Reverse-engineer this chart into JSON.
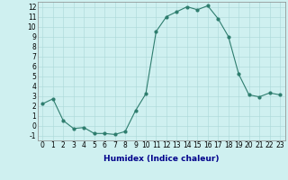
{
  "x": [
    0,
    1,
    2,
    3,
    4,
    5,
    6,
    7,
    8,
    9,
    10,
    11,
    12,
    13,
    14,
    15,
    16,
    17,
    18,
    19,
    20,
    21,
    22,
    23
  ],
  "y": [
    2.2,
    2.7,
    0.5,
    -0.3,
    -0.2,
    -0.8,
    -0.8,
    -0.9,
    -0.6,
    1.5,
    3.2,
    9.5,
    11.0,
    11.5,
    12.0,
    11.7,
    12.1,
    10.8,
    9.0,
    5.2,
    3.1,
    2.9,
    3.3,
    3.1
  ],
  "xlabel": "Humidex (Indice chaleur)",
  "ylim": [
    -1.5,
    12.5
  ],
  "xlim": [
    -0.5,
    23.5
  ],
  "bg_color": "#cff0f0",
  "line_color": "#2e7d6e",
  "grid_color": "#aad8d8",
  "yticks": [
    -1,
    0,
    1,
    2,
    3,
    4,
    5,
    6,
    7,
    8,
    9,
    10,
    11,
    12
  ],
  "xticks": [
    0,
    1,
    2,
    3,
    4,
    5,
    6,
    7,
    8,
    9,
    10,
    11,
    12,
    13,
    14,
    15,
    16,
    17,
    18,
    19,
    20,
    21,
    22,
    23
  ],
  "tick_fontsize": 5.5,
  "xlabel_fontsize": 6.5,
  "xlabel_color": "#00008b"
}
